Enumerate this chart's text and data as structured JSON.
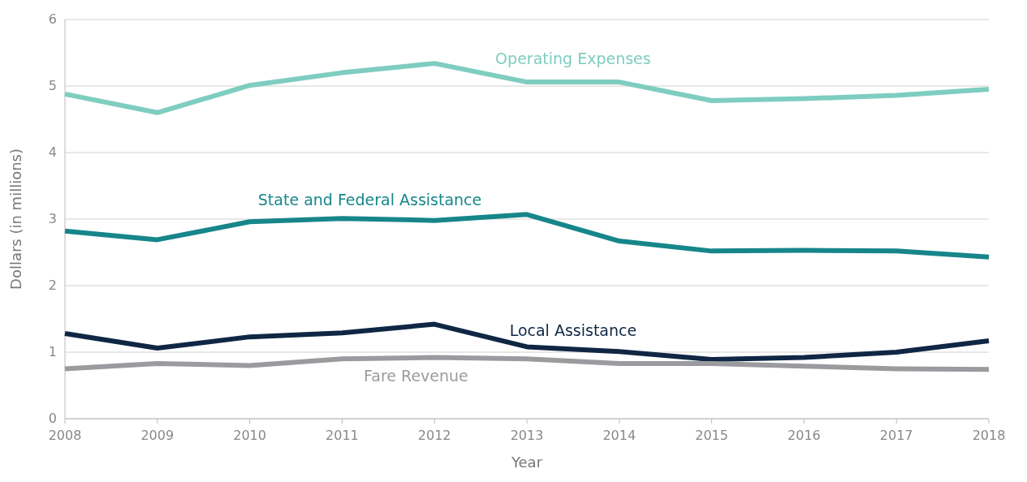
{
  "chart_data": {
    "type": "line",
    "xlabel": "Year",
    "ylabel": "Dollars (in millions)",
    "x": [
      2008,
      2009,
      2010,
      2011,
      2012,
      2013,
      2014,
      2015,
      2016,
      2017,
      2018
    ],
    "xlim": [
      2008,
      2018
    ],
    "xticks": [
      2008,
      2009,
      2010,
      2011,
      2012,
      2013,
      2014,
      2015,
      2016,
      2017,
      2018
    ],
    "ylim": [
      0,
      6
    ],
    "yticks": [
      0,
      1,
      2,
      3,
      4,
      5,
      6
    ],
    "grid": "y",
    "marker": "none",
    "line_style": "solid",
    "series": [
      {
        "name": "Operating Expenses",
        "color": "#7ecdc0",
        "values": [
          4.88,
          4.6,
          5.01,
          5.2,
          5.34,
          5.06,
          5.06,
          4.78,
          4.81,
          4.86,
          4.95
        ]
      },
      {
        "name": "State and Federal Assistance",
        "color": "#16868a",
        "values": [
          2.82,
          2.69,
          2.96,
          3.01,
          2.98,
          3.07,
          2.67,
          2.52,
          2.53,
          2.52,
          2.43
        ]
      },
      {
        "name": "Local Assistance",
        "color": "#0f2744",
        "values": [
          1.28,
          1.06,
          1.23,
          1.29,
          1.42,
          1.08,
          1.01,
          0.89,
          0.92,
          1.0,
          1.17
        ]
      },
      {
        "name": "Fare Revenue",
        "color": "#9b9b9f",
        "values": [
          0.75,
          0.83,
          0.8,
          0.9,
          0.92,
          0.9,
          0.83,
          0.83,
          0.79,
          0.75,
          0.74
        ]
      }
    ]
  }
}
